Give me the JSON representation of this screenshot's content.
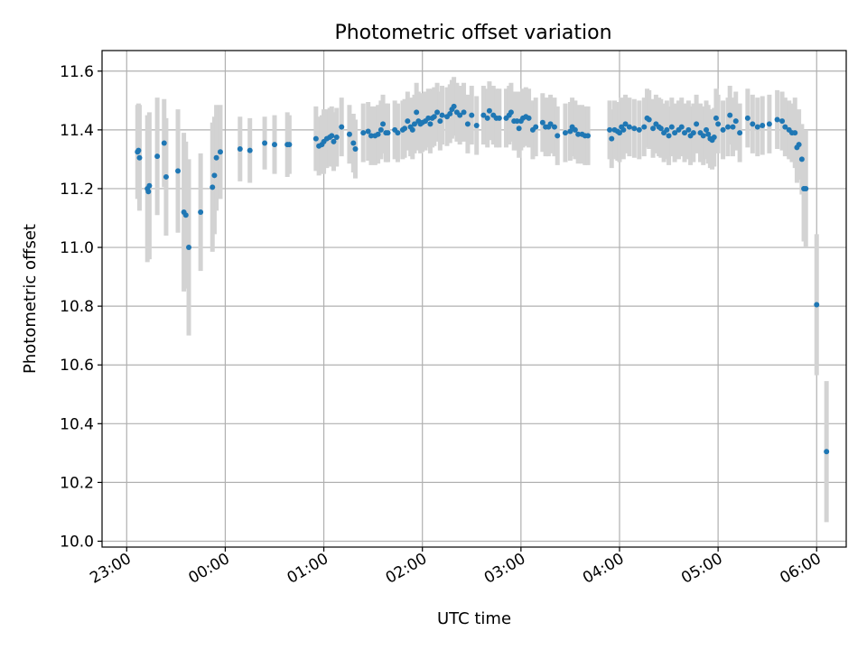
{
  "chart_data": {
    "type": "scatter",
    "title": "Photometric offset variation",
    "xlabel": "UTC time",
    "ylabel": "Photometric offset",
    "xlim": [
      -0.25,
      7.3
    ],
    "ylim": [
      9.98,
      11.67
    ],
    "grid": true,
    "x_ticks": [
      {
        "value": 0,
        "label": "23:00"
      },
      {
        "value": 1,
        "label": "00:00"
      },
      {
        "value": 2,
        "label": "01:00"
      },
      {
        "value": 3,
        "label": "02:00"
      },
      {
        "value": 4,
        "label": "03:00"
      },
      {
        "value": 5,
        "label": "04:00"
      },
      {
        "value": 6,
        "label": "05:00"
      },
      {
        "value": 7,
        "label": "06:00"
      }
    ],
    "y_ticks": [
      {
        "value": 10.0,
        "label": "10.0"
      },
      {
        "value": 10.2,
        "label": "10.2"
      },
      {
        "value": 10.4,
        "label": "10.4"
      },
      {
        "value": 10.6,
        "label": "10.6"
      },
      {
        "value": 10.8,
        "label": "10.8"
      },
      {
        "value": 11.0,
        "label": "11.0"
      },
      {
        "value": 11.2,
        "label": "11.2"
      },
      {
        "value": 11.4,
        "label": "11.4"
      },
      {
        "value": 11.6,
        "label": "11.6"
      }
    ],
    "x_unit": "hours since 23:00 UTC",
    "series": [
      {
        "name": "photometric offset",
        "marker_color": "#1f77b4",
        "errorbar_color": "#d3d3d3",
        "points": [
          [
            0.11,
            11.325,
            0.16
          ],
          [
            0.12,
            11.33,
            0.16
          ],
          [
            0.13,
            11.305,
            0.18
          ],
          [
            0.21,
            11.2,
            0.25
          ],
          [
            0.22,
            11.19,
            0.23
          ],
          [
            0.23,
            11.21,
            0.25
          ],
          [
            0.31,
            11.31,
            0.2
          ],
          [
            0.38,
            11.355,
            0.15
          ],
          [
            0.4,
            11.24,
            0.2
          ],
          [
            0.52,
            11.26,
            0.21
          ],
          [
            0.58,
            11.12,
            0.27
          ],
          [
            0.6,
            11.11,
            0.25
          ],
          [
            0.63,
            11.0,
            0.3
          ],
          [
            0.75,
            11.12,
            0.2
          ],
          [
            0.87,
            11.205,
            0.22
          ],
          [
            0.89,
            11.245,
            0.2
          ],
          [
            0.91,
            11.305,
            0.18
          ],
          [
            0.95,
            11.325,
            0.16
          ],
          [
            1.15,
            11.335,
            0.11
          ],
          [
            1.25,
            11.33,
            0.11
          ],
          [
            1.4,
            11.355,
            0.09
          ],
          [
            1.5,
            11.35,
            0.1
          ],
          [
            1.63,
            11.35,
            0.11
          ],
          [
            1.65,
            11.35,
            0.1
          ],
          [
            1.92,
            11.37,
            0.11
          ],
          [
            1.95,
            11.345,
            0.1
          ],
          [
            1.98,
            11.35,
            0.1
          ],
          [
            2.0,
            11.36,
            0.11
          ],
          [
            2.03,
            11.37,
            0.1
          ],
          [
            2.06,
            11.375,
            0.1
          ],
          [
            2.08,
            11.38,
            0.1
          ],
          [
            2.1,
            11.36,
            0.1
          ],
          [
            2.13,
            11.375,
            0.1
          ],
          [
            2.18,
            11.41,
            0.1
          ],
          [
            2.26,
            11.385,
            0.1
          ],
          [
            2.3,
            11.355,
            0.1
          ],
          [
            2.32,
            11.335,
            0.1
          ],
          [
            2.4,
            11.39,
            0.1
          ],
          [
            2.45,
            11.395,
            0.1
          ],
          [
            2.48,
            11.38,
            0.1
          ],
          [
            2.52,
            11.38,
            0.1
          ],
          [
            2.55,
            11.385,
            0.1
          ],
          [
            2.58,
            11.4,
            0.1
          ],
          [
            2.6,
            11.42,
            0.1
          ],
          [
            2.63,
            11.39,
            0.1
          ],
          [
            2.65,
            11.39,
            0.1
          ],
          [
            2.72,
            11.4,
            0.1
          ],
          [
            2.75,
            11.39,
            0.1
          ],
          [
            2.8,
            11.4,
            0.1
          ],
          [
            2.82,
            11.405,
            0.1
          ],
          [
            2.85,
            11.43,
            0.1
          ],
          [
            2.88,
            11.41,
            0.1
          ],
          [
            2.9,
            11.4,
            0.1
          ],
          [
            2.92,
            11.42,
            0.1
          ],
          [
            2.94,
            11.46,
            0.1
          ],
          [
            2.96,
            11.43,
            0.1
          ],
          [
            2.98,
            11.42,
            0.1
          ],
          [
            3.0,
            11.425,
            0.1
          ],
          [
            3.03,
            11.43,
            0.1
          ],
          [
            3.06,
            11.44,
            0.1
          ],
          [
            3.08,
            11.42,
            0.1
          ],
          [
            3.1,
            11.44,
            0.1
          ],
          [
            3.12,
            11.445,
            0.1
          ],
          [
            3.15,
            11.46,
            0.1
          ],
          [
            3.18,
            11.43,
            0.1
          ],
          [
            3.2,
            11.45,
            0.1
          ],
          [
            3.25,
            11.445,
            0.1
          ],
          [
            3.28,
            11.455,
            0.1
          ],
          [
            3.3,
            11.47,
            0.1
          ],
          [
            3.32,
            11.48,
            0.1
          ],
          [
            3.35,
            11.46,
            0.1
          ],
          [
            3.38,
            11.45,
            0.1
          ],
          [
            3.42,
            11.46,
            0.1
          ],
          [
            3.46,
            11.42,
            0.1
          ],
          [
            3.5,
            11.45,
            0.1
          ],
          [
            3.55,
            11.415,
            0.1
          ],
          [
            3.62,
            11.45,
            0.1
          ],
          [
            3.66,
            11.44,
            0.1
          ],
          [
            3.68,
            11.465,
            0.1
          ],
          [
            3.72,
            11.45,
            0.1
          ],
          [
            3.75,
            11.44,
            0.1
          ],
          [
            3.78,
            11.44,
            0.1
          ],
          [
            3.85,
            11.44,
            0.1
          ],
          [
            3.88,
            11.45,
            0.1
          ],
          [
            3.9,
            11.46,
            0.1
          ],
          [
            3.93,
            11.43,
            0.1
          ],
          [
            3.96,
            11.43,
            0.1
          ],
          [
            3.98,
            11.405,
            0.1
          ],
          [
            4.0,
            11.43,
            0.1
          ],
          [
            4.02,
            11.44,
            0.1
          ],
          [
            4.05,
            11.445,
            0.1
          ],
          [
            4.08,
            11.44,
            0.1
          ],
          [
            4.12,
            11.4,
            0.1
          ],
          [
            4.15,
            11.41,
            0.1
          ],
          [
            4.22,
            11.425,
            0.1
          ],
          [
            4.25,
            11.41,
            0.1
          ],
          [
            4.28,
            11.41,
            0.1
          ],
          [
            4.3,
            11.42,
            0.1
          ],
          [
            4.34,
            11.41,
            0.1
          ],
          [
            4.37,
            11.38,
            0.1
          ],
          [
            4.45,
            11.39,
            0.1
          ],
          [
            4.5,
            11.395,
            0.1
          ],
          [
            4.52,
            11.41,
            0.1
          ],
          [
            4.55,
            11.4,
            0.1
          ],
          [
            4.58,
            11.385,
            0.1
          ],
          [
            4.62,
            11.385,
            0.1
          ],
          [
            4.65,
            11.38,
            0.1
          ],
          [
            4.68,
            11.38,
            0.1
          ],
          [
            4.9,
            11.4,
            0.1
          ],
          [
            4.92,
            11.37,
            0.1
          ],
          [
            4.95,
            11.4,
            0.1
          ],
          [
            4.98,
            11.395,
            0.1
          ],
          [
            5.0,
            11.39,
            0.1
          ],
          [
            5.02,
            11.41,
            0.1
          ],
          [
            5.04,
            11.4,
            0.1
          ],
          [
            5.06,
            11.42,
            0.1
          ],
          [
            5.1,
            11.41,
            0.1
          ],
          [
            5.15,
            11.405,
            0.1
          ],
          [
            5.2,
            11.4,
            0.1
          ],
          [
            5.25,
            11.41,
            0.1
          ],
          [
            5.28,
            11.44,
            0.1
          ],
          [
            5.3,
            11.435,
            0.1
          ],
          [
            5.34,
            11.405,
            0.1
          ],
          [
            5.37,
            11.42,
            0.1
          ],
          [
            5.4,
            11.41,
            0.1
          ],
          [
            5.42,
            11.405,
            0.1
          ],
          [
            5.45,
            11.39,
            0.1
          ],
          [
            5.48,
            11.4,
            0.1
          ],
          [
            5.5,
            11.38,
            0.1
          ],
          [
            5.53,
            11.41,
            0.1
          ],
          [
            5.56,
            11.39,
            0.1
          ],
          [
            5.6,
            11.4,
            0.1
          ],
          [
            5.63,
            11.41,
            0.1
          ],
          [
            5.66,
            11.39,
            0.1
          ],
          [
            5.7,
            11.4,
            0.1
          ],
          [
            5.72,
            11.38,
            0.1
          ],
          [
            5.75,
            11.39,
            0.1
          ],
          [
            5.78,
            11.42,
            0.1
          ],
          [
            5.82,
            11.39,
            0.1
          ],
          [
            5.85,
            11.38,
            0.1
          ],
          [
            5.88,
            11.4,
            0.1
          ],
          [
            5.9,
            11.385,
            0.1
          ],
          [
            5.92,
            11.37,
            0.1
          ],
          [
            5.94,
            11.365,
            0.1
          ],
          [
            5.96,
            11.375,
            0.1
          ],
          [
            5.98,
            11.44,
            0.1
          ],
          [
            6.0,
            11.42,
            0.1
          ],
          [
            6.05,
            11.4,
            0.1
          ],
          [
            6.1,
            11.41,
            0.1
          ],
          [
            6.12,
            11.45,
            0.1
          ],
          [
            6.15,
            11.41,
            0.1
          ],
          [
            6.18,
            11.43,
            0.1
          ],
          [
            6.22,
            11.39,
            0.1
          ],
          [
            6.3,
            11.44,
            0.1
          ],
          [
            6.35,
            11.42,
            0.1
          ],
          [
            6.4,
            11.41,
            0.1
          ],
          [
            6.45,
            11.415,
            0.1
          ],
          [
            6.52,
            11.42,
            0.1
          ],
          [
            6.6,
            11.435,
            0.1
          ],
          [
            6.65,
            11.43,
            0.1
          ],
          [
            6.68,
            11.41,
            0.1
          ],
          [
            6.72,
            11.4,
            0.1
          ],
          [
            6.75,
            11.39,
            0.1
          ],
          [
            6.78,
            11.39,
            0.12
          ],
          [
            6.8,
            11.34,
            0.12
          ],
          [
            6.82,
            11.35,
            0.12
          ],
          [
            6.85,
            11.3,
            0.12
          ],
          [
            6.87,
            11.2,
            0.18
          ],
          [
            6.89,
            11.2,
            0.2
          ],
          [
            7.0,
            10.805,
            0.24
          ],
          [
            7.1,
            10.305,
            0.24
          ]
        ]
      }
    ]
  }
}
